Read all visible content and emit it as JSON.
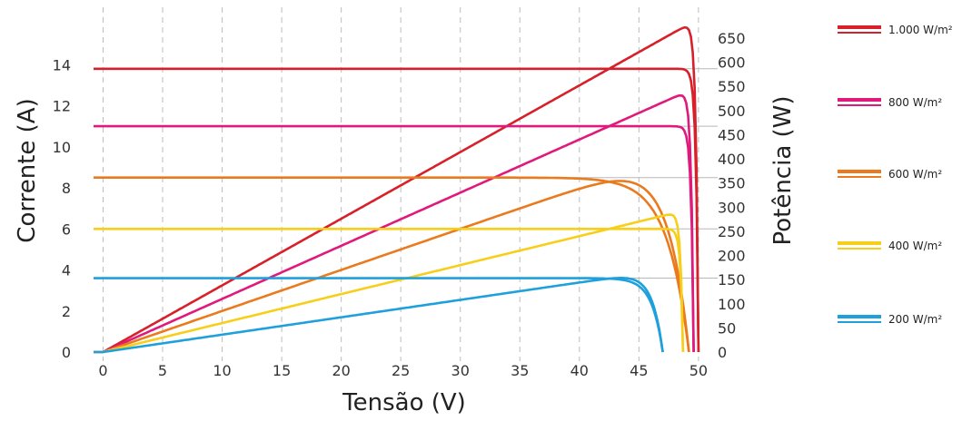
{
  "chart_data": {
    "type": "line",
    "xlabel": "Tensão (V)",
    "ylabel_left": "Corrente (A)",
    "ylabel_right": "Potência (W)",
    "x_ticks": [
      0,
      5,
      10,
      15,
      20,
      25,
      30,
      35,
      40,
      45,
      50
    ],
    "y_left_ticks": [
      0,
      2,
      4,
      6,
      8,
      10,
      12,
      14
    ],
    "y_right_ticks": [
      0,
      50,
      100,
      150,
      200,
      250,
      300,
      350,
      400,
      450,
      500,
      550,
      600,
      650
    ],
    "xlim": [
      -0.8,
      51
    ],
    "ylim_left": [
      0,
      16
    ],
    "ylim_right": [
      0,
      680
    ],
    "grid": {
      "vertical": "dashed",
      "horizontal": "at current plateaus"
    },
    "legend_position": "right",
    "series": [
      {
        "name": "1.000 W/m²",
        "color": "#d7202a",
        "isc": 13.8,
        "voc": 50.0,
        "vmp": 45.0,
        "pmax": 655
      },
      {
        "name": "800 W/m²",
        "color": "#e0197d",
        "isc": 11.0,
        "voc": 49.6,
        "vmp": 44.0,
        "pmax": 530
      },
      {
        "name": "600 W/m²",
        "color": "#ea7a1d",
        "isc": 8.5,
        "voc": 49.2,
        "vmp": 43.5,
        "pmax": 355
      },
      {
        "name": "400 W/m²",
        "color": "#f7cf1a",
        "isc": 6.0,
        "voc": 48.7,
        "vmp": 42.0,
        "pmax": 255
      },
      {
        "name": "200 W/m²",
        "color": "#1ea0dc",
        "isc": 3.6,
        "voc": 47.0,
        "vmp": 46.0,
        "pmax": 110
      }
    ]
  }
}
